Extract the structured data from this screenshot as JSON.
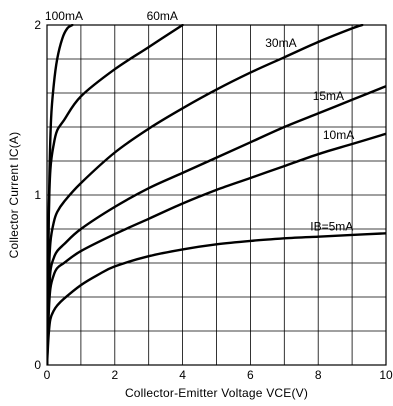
{
  "chart_data": {
    "type": "line",
    "xlabel": "Collector-Emitter Voltage VCE(V)",
    "ylabel": "Collector Current IC(A)",
    "xlim": [
      0,
      10
    ],
    "ylim": [
      0,
      2
    ],
    "x_ticks": [
      "0",
      "2",
      "4",
      "6",
      "8",
      "10"
    ],
    "y_ticks": [
      "0",
      "1",
      "2"
    ],
    "x_grid_step": 1,
    "y_grid_step": 0.2,
    "grid": true,
    "series": [
      {
        "name": "IB=5mA",
        "points": [
          [
            0,
            0
          ],
          [
            0.05,
            0.18
          ],
          [
            0.1,
            0.27
          ],
          [
            0.2,
            0.32
          ],
          [
            0.3,
            0.35
          ],
          [
            0.5,
            0.39
          ],
          [
            1,
            0.47
          ],
          [
            1.5,
            0.53
          ],
          [
            2,
            0.58
          ],
          [
            3,
            0.64
          ],
          [
            4,
            0.68
          ],
          [
            5,
            0.71
          ],
          [
            6,
            0.73
          ],
          [
            7,
            0.745
          ],
          [
            8,
            0.755
          ],
          [
            9,
            0.765
          ],
          [
            10,
            0.775
          ]
        ]
      },
      {
        "name": "10mA",
        "points": [
          [
            0,
            0
          ],
          [
            0.05,
            0.3
          ],
          [
            0.1,
            0.45
          ],
          [
            0.2,
            0.53
          ],
          [
            0.3,
            0.57
          ],
          [
            0.5,
            0.6
          ],
          [
            1,
            0.67
          ],
          [
            2,
            0.77
          ],
          [
            3,
            0.86
          ],
          [
            4,
            0.95
          ],
          [
            5,
            1.03
          ],
          [
            6,
            1.1
          ],
          [
            7,
            1.17
          ],
          [
            8,
            1.24
          ],
          [
            9,
            1.3
          ],
          [
            10,
            1.36
          ]
        ]
      },
      {
        "name": "15mA",
        "points": [
          [
            0,
            0
          ],
          [
            0.05,
            0.35
          ],
          [
            0.1,
            0.55
          ],
          [
            0.2,
            0.63
          ],
          [
            0.3,
            0.67
          ],
          [
            0.5,
            0.71
          ],
          [
            1,
            0.8
          ],
          [
            2,
            0.93
          ],
          [
            3,
            1.04
          ],
          [
            4,
            1.13
          ],
          [
            5,
            1.22
          ],
          [
            6,
            1.31
          ],
          [
            7,
            1.4
          ],
          [
            8,
            1.48
          ],
          [
            9,
            1.56
          ],
          [
            10,
            1.64
          ]
        ]
      },
      {
        "name": "30mA",
        "points": [
          [
            0,
            0
          ],
          [
            0.05,
            0.5
          ],
          [
            0.1,
            0.72
          ],
          [
            0.2,
            0.84
          ],
          [
            0.3,
            0.9
          ],
          [
            0.5,
            0.96
          ],
          [
            1,
            1.07
          ],
          [
            2,
            1.25
          ],
          [
            3,
            1.39
          ],
          [
            4,
            1.51
          ],
          [
            5,
            1.62
          ],
          [
            6,
            1.72
          ],
          [
            7,
            1.81
          ],
          [
            8,
            1.9
          ],
          [
            9,
            1.98
          ],
          [
            9.3,
            2.0
          ]
        ]
      },
      {
        "name": "60mA",
        "points": [
          [
            0,
            0
          ],
          [
            0.05,
            0.85
          ],
          [
            0.1,
            1.15
          ],
          [
            0.2,
            1.3
          ],
          [
            0.3,
            1.38
          ],
          [
            0.5,
            1.44
          ],
          [
            1,
            1.58
          ],
          [
            2,
            1.74
          ],
          [
            3,
            1.87
          ],
          [
            4,
            2.0
          ]
        ]
      },
      {
        "name": "100mA",
        "points": [
          [
            0,
            0
          ],
          [
            0.03,
            0.6
          ],
          [
            0.07,
            1.1
          ],
          [
            0.12,
            1.45
          ],
          [
            0.2,
            1.65
          ],
          [
            0.3,
            1.8
          ],
          [
            0.45,
            1.92
          ],
          [
            0.6,
            1.98
          ],
          [
            0.75,
            2.0
          ]
        ]
      }
    ],
    "labels": [
      {
        "text": "100mA",
        "x": 0.5,
        "y": 2.03
      },
      {
        "text": "60mA",
        "x": 3.4,
        "y": 2.03
      },
      {
        "text": "30mA",
        "x": 6.9,
        "y": 1.87
      },
      {
        "text": "15mA",
        "x": 8.3,
        "y": 1.56
      },
      {
        "text": "10mA",
        "x": 8.6,
        "y": 1.33
      },
      {
        "text": "IB=5mA",
        "x": 8.4,
        "y": 0.79
      }
    ]
  }
}
